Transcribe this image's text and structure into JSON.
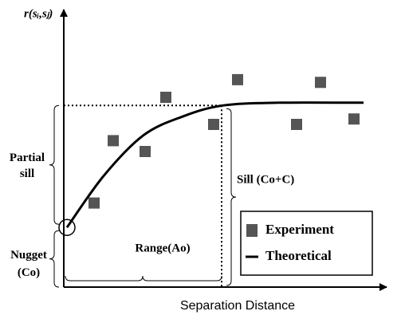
{
  "chart_data": {
    "type": "variogram",
    "y_label": "r(sᵢ,sⱼ)",
    "x_label": "Separation Distance",
    "xlim": [
      0,
      100
    ],
    "ylim": [
      0,
      100
    ],
    "nugget": 22,
    "sill": 67,
    "range": 49.5,
    "series": [
      {
        "name": "Experiment",
        "color": "#555555",
        "kind": "points",
        "x": [
          9.5,
          15.5,
          25.5,
          32,
          47,
          54.5,
          73,
          80.5,
          91
        ],
        "values": [
          31,
          54,
          50,
          70,
          60,
          76.5,
          60,
          75.5,
          62
        ]
      },
      {
        "name": "Theoretical",
        "color": "#000000",
        "kind": "line",
        "x": [
          1,
          12.5,
          25,
          37.5,
          50,
          67.5,
          94
        ],
        "values": [
          22,
          41,
          56,
          63,
          67,
          68,
          68
        ]
      }
    ],
    "annotations": {
      "partial_sill": [
        "Partial",
        "sill"
      ],
      "sill": "Sill (Co+C)",
      "nugget": [
        "Nugget",
        "(Co)"
      ],
      "range": "Range(Ao)"
    }
  }
}
